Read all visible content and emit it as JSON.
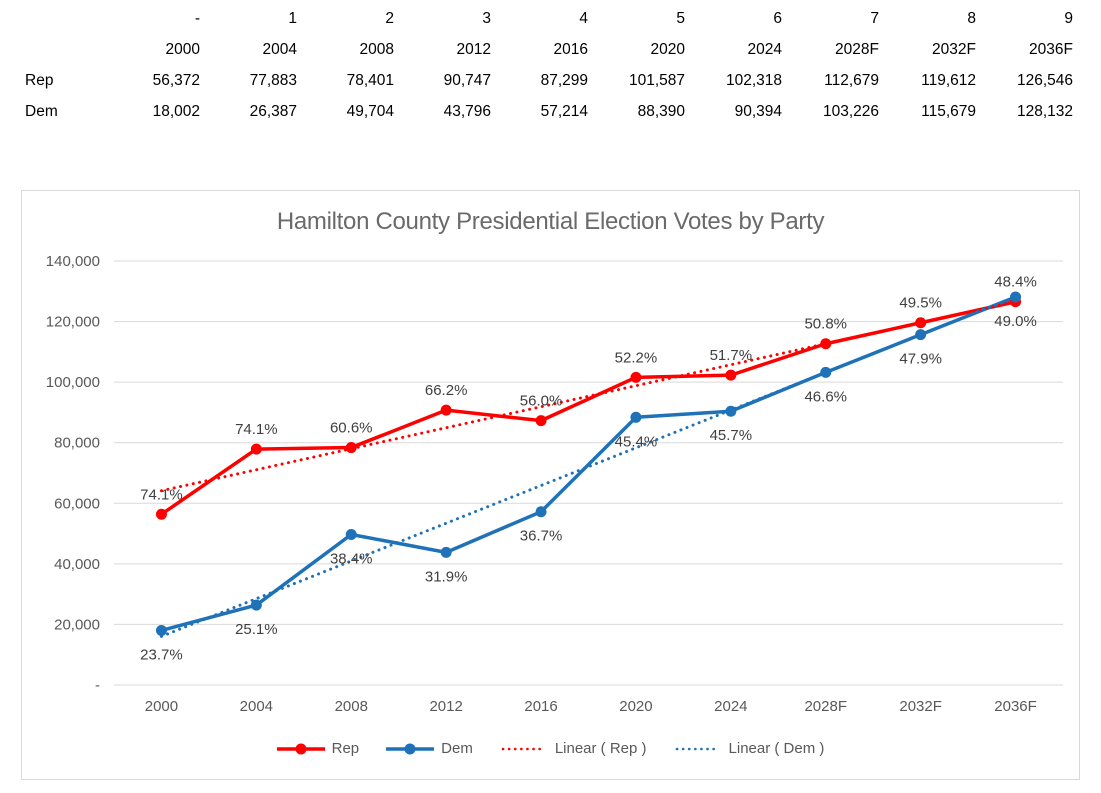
{
  "table": {
    "index_row": [
      "-",
      "1",
      "2",
      "3",
      "4",
      "5",
      "6",
      "7",
      "8",
      "9"
    ],
    "year_row": [
      "2000",
      "2004",
      "2008",
      "2012",
      "2016",
      "2020",
      "2024",
      "2028F",
      "2032F",
      "2036F"
    ],
    "series_rows": [
      {
        "label": "Rep",
        "values": [
          "56,372",
          "77,883",
          "78,401",
          "90,747",
          "87,299",
          "101,587",
          "102,318",
          "112,679",
          "119,612",
          "126,546"
        ]
      },
      {
        "label": "Dem",
        "values": [
          "18,002",
          "26,387",
          "49,704",
          "43,796",
          "57,214",
          "88,390",
          "90,394",
          "103,226",
          "115,679",
          "128,132"
        ]
      }
    ]
  },
  "chart_data": {
    "type": "line",
    "title": "Hamilton County Presidential Election Votes by Party",
    "categories": [
      "2000",
      "2004",
      "2008",
      "2012",
      "2016",
      "2020",
      "2024",
      "2028F",
      "2032F",
      "2036F"
    ],
    "series": [
      {
        "name": "Rep",
        "color": "#ff0000",
        "values": [
          56372,
          77883,
          78401,
          90747,
          87299,
          101587,
          102318,
          112679,
          119612,
          126546
        ],
        "point_labels": [
          "74.1%",
          "74.1%",
          "60.6%",
          "66.2%",
          "56.0%",
          "52.2%",
          "51.7%",
          "50.8%",
          "49.5%",
          "48.4%"
        ],
        "label_position": "above"
      },
      {
        "name": "Dem",
        "color": "#1f72b8",
        "values": [
          18002,
          26387,
          49704,
          43796,
          57214,
          88390,
          90394,
          103226,
          115679,
          128132
        ],
        "point_labels": [
          "23.7%",
          "25.1%",
          "38.4%",
          "31.9%",
          "36.7%",
          "45.4%",
          "45.7%",
          "46.6%",
          "47.9%",
          "49.0%"
        ],
        "label_position": "below"
      }
    ],
    "trendlines": [
      {
        "name": "Linear ( Rep )",
        "series": "Rep",
        "color": "#ff0000"
      },
      {
        "name": "Linear ( Dem )",
        "series": "Dem",
        "color": "#1f72b8"
      }
    ],
    "ylim": [
      0,
      140000
    ],
    "ytick_step": 20000,
    "ytick_labels": [
      "-",
      "20,000",
      "40,000",
      "60,000",
      "80,000",
      "100,000",
      "120,000",
      "140,000"
    ],
    "grid": true,
    "legend_position": "bottom"
  },
  "colors": {
    "grid": "#d9d9d9",
    "axis_text": "#595959",
    "title_text": "#6a6a6a",
    "data_label_text": "#404040",
    "chart_border": "#d9d9d9"
  }
}
